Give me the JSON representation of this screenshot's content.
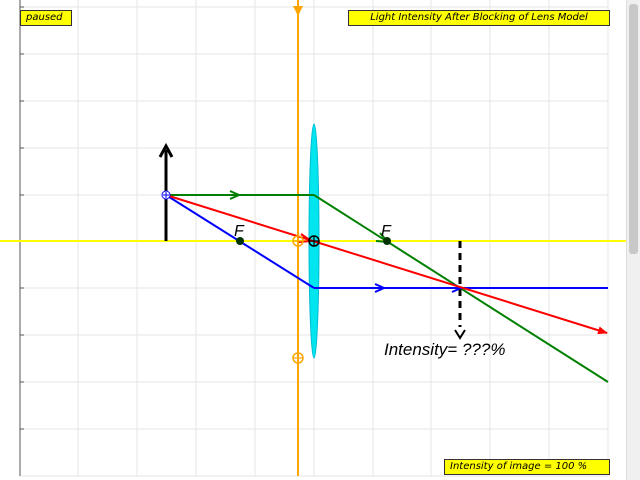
{
  "status": "paused",
  "title": "Light Intensity After Blocking of Lens Model",
  "image_intensity_text": "Intensity of image = 100 %",
  "intensity_query_text": "Intensity= ???%",
  "focal_label_left": "F",
  "focal_label_right": "F",
  "colors": {
    "axis": "#ffff00",
    "lens": "#00e5ee",
    "ray_top": "#008000",
    "ray_middle": "#ff0000",
    "ray_bottom": "#0000ff",
    "screen": "#ffa500",
    "label_background": "#ffff00"
  }
}
